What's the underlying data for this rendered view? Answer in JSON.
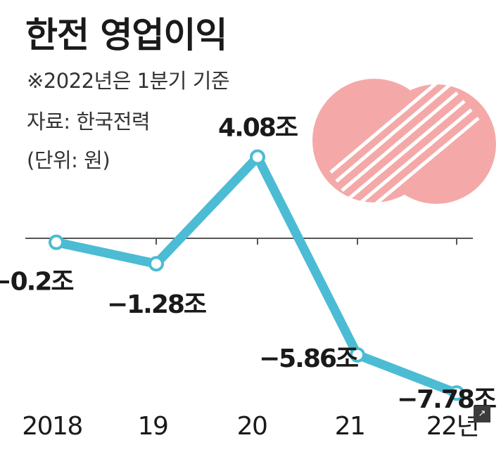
{
  "header": {
    "title": "한전 영업이익",
    "note": "※2022년은 1분기 기준",
    "source": "자료: 한국전력",
    "unit": "(단위: 원)"
  },
  "chart_data": {
    "type": "line",
    "title": "한전 영업이익",
    "categories": [
      "2018",
      "19",
      "20",
      "21",
      "22년"
    ],
    "series": [
      {
        "values": [
          -0.2,
          -1.28,
          4.08,
          -5.86,
          -7.78
        ],
        "labels": [
          "−0.2조",
          "−1.28조",
          "4.08조",
          "−5.86조",
          "−7.78조"
        ]
      }
    ],
    "unit": "조원",
    "ylim": [
      -8.5,
      5.5
    ],
    "grid": false,
    "colors": {
      "line": "#4bbcd3",
      "axis": "#555555",
      "logo": "#f4a9a8"
    }
  },
  "icons": {
    "logo": "kepco-logo-icon",
    "corner": "expand-icon"
  }
}
